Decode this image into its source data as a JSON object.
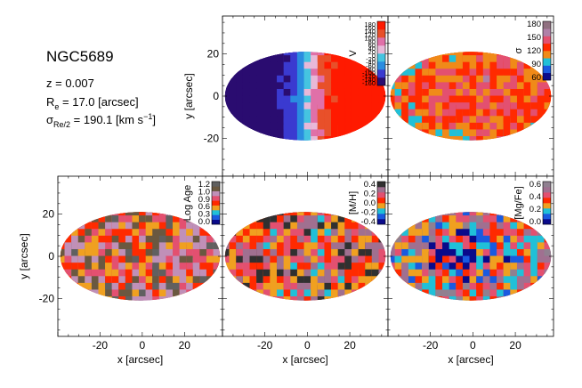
{
  "info": {
    "galaxy": "NGC5689",
    "z_text": "z = 0.007",
    "re_sym": "R",
    "re_sub": "e",
    "re_val": " = 17.0 [arcsec]",
    "sig_sym": "σ",
    "sig_sub": "Re/2",
    "sig_val": " = 190.1 [km s",
    "sig_exp": "−1",
    "sig_end": "]"
  },
  "chart_data": {
    "type": "heatmap",
    "xlabel": "x [arcsec]",
    "ylabel": "y [arcsec]",
    "xlim": [
      -40,
      38
    ],
    "ylim": [
      -38,
      38
    ],
    "xticks": [
      -20,
      0,
      20
    ],
    "yticks": [
      -20,
      0,
      20
    ],
    "maps": [
      {
        "label": "V",
        "colorbar_ticks": [
          "180",
          "160",
          "140",
          "120",
          "100",
          "80",
          "60",
          "40",
          "20",
          "0",
          "-20",
          "-40",
          "-60",
          "-80",
          "-100",
          "-120",
          "-140",
          "-160"
        ],
        "colorscale": [
          "#2a0c70",
          "#3a3ad0",
          "#2a8ce0",
          "#45c4e0",
          "#e8b8d8",
          "#e070a8",
          "#e8502a",
          "#ff1a00"
        ],
        "range": [
          -180,
          180
        ]
      },
      {
        "label": "σ",
        "colorbar_ticks": [
          "180",
          "150",
          "120",
          "90",
          "60"
        ],
        "colorscale": [
          "#0a0a8a",
          "#1a5ae0",
          "#20c0d8",
          "#f08a18",
          "#ff2a00",
          "#e35070",
          "#b080a8",
          "#907080"
        ],
        "range": [
          50,
          190
        ]
      },
      {
        "label": "Log Age",
        "colorbar_ticks": [
          "1.2",
          "1.0",
          "0.9",
          "0.6",
          "0.3",
          "0.0"
        ],
        "colorscale": [
          "#0a0a8a",
          "#1a5ae0",
          "#20c0d8",
          "#f0a020",
          "#ff2a00",
          "#e35070",
          "#c090b8",
          "#6a5840",
          "#606060"
        ],
        "range": [
          -0.1,
          1.25
        ]
      },
      {
        "label": "[M/H]",
        "colorbar_ticks": [
          "0.4",
          "0.2",
          "0.0",
          "-0.2",
          "-0.4"
        ],
        "colorscale": [
          "#0a0a8a",
          "#1a5ae0",
          "#20c0d8",
          "#f0a020",
          "#ff2a00",
          "#e35070",
          "#a07090",
          "#303030"
        ],
        "range": [
          -0.5,
          0.45
        ]
      },
      {
        "label": "[Mg/Fe]",
        "colorbar_ticks": [
          "0.6",
          "0.4",
          "0.2",
          "0.0"
        ],
        "colorscale": [
          "#0a0a8a",
          "#1a5ae0",
          "#20c0d8",
          "#f0a020",
          "#ff2a00",
          "#e35070",
          "#a07090",
          "#908090"
        ],
        "range": [
          -0.1,
          0.65
        ]
      }
    ]
  }
}
